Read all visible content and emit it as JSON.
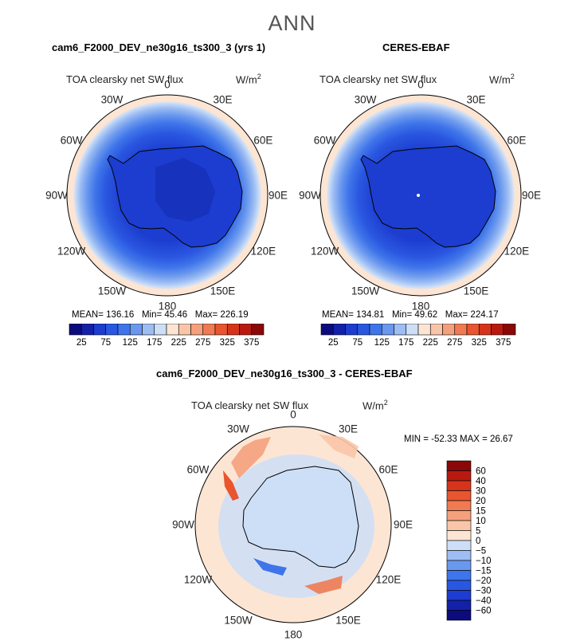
{
  "figure": {
    "season": "ANN",
    "panels": [
      {
        "title": "cam6_F2000_DEV_ne30g16_ts300_3 (yrs 1)",
        "variable": "TOA clearsky net SW flux",
        "units_base": "W/m",
        "units_exp": "2",
        "stats": {
          "mean_label": "MEAN=",
          "mean": "136.16",
          "min_label": "Min=",
          "min": "45.46",
          "max_label": "Max=",
          "max": "226.19"
        }
      },
      {
        "title": "CERES-EBAF",
        "variable": "TOA clearsky net SW flux",
        "units_base": "W/m",
        "units_exp": "2",
        "stats": {
          "mean_label": "MEAN=",
          "mean": "134.81",
          "min_label": "Min=",
          "min": "49.62",
          "max_label": "Max=",
          "max": "224.17"
        }
      },
      {
        "title": "cam6_F2000_DEV_ne30g16_ts300_3 - CERES-EBAF",
        "variable": "TOA clearsky net SW flux",
        "units_base": "W/m",
        "units_exp": "2",
        "stats_text": "MIN = -52.33 MAX =   26.67"
      }
    ],
    "longitude_labels": [
      "0",
      "30E",
      "60E",
      "90E",
      "120E",
      "150E",
      "180",
      "150W",
      "120W",
      "90W",
      "60W",
      "30W"
    ],
    "colorbar_abs": {
      "tick_labels": [
        "25",
        "75",
        "125",
        "175",
        "225",
        "275",
        "325",
        "375"
      ],
      "colors": [
        "#0c0b7e",
        "#1321a8",
        "#1c3dd0",
        "#2a57e0",
        "#3f75ea",
        "#6a98ee",
        "#9dbdf3",
        "#cddff7",
        "#fde5d4",
        "#f9c5a8",
        "#f5a07c",
        "#f07a52",
        "#e8552e",
        "#d6341a",
        "#b81a10",
        "#8a0808"
      ]
    },
    "colorbar_diff": {
      "tick_labels": [
        "60",
        "40",
        "30",
        "20",
        "15",
        "10",
        "5",
        "0",
        "−5",
        "−10",
        "−15",
        "−20",
        "−30",
        "−40",
        "−60"
      ],
      "colors": [
        "#8a0808",
        "#b81a10",
        "#d6341a",
        "#e8552e",
        "#f07a52",
        "#f5a07c",
        "#f9c5a8",
        "#fde5d4",
        "#cddff7",
        "#9dbdf3",
        "#6a98ee",
        "#3f75ea",
        "#2a57e0",
        "#1c3dd0",
        "#1321a8",
        "#0c0b7e"
      ]
    },
    "colors": {
      "ocean_ring": "#fde5d4",
      "diff_background": "#fde5d4"
    }
  }
}
